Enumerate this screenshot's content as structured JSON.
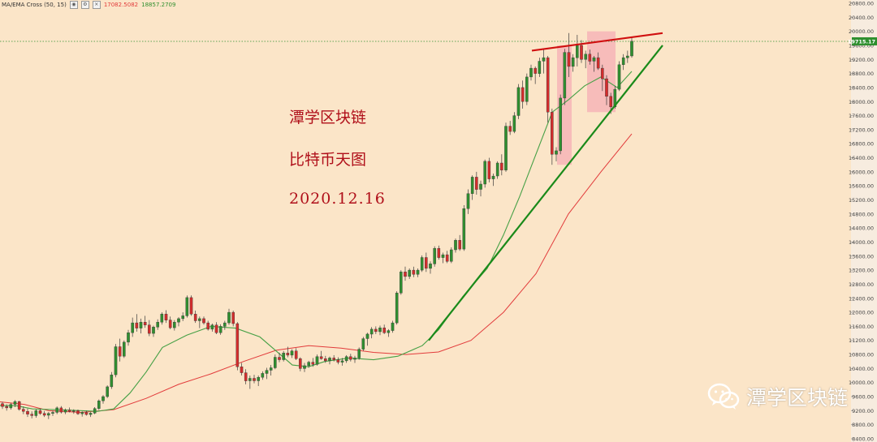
{
  "legend": {
    "indicator": "MA/EMA Cross (50, 15)",
    "ma_value": "17082.5082",
    "ema_value": "18857.2709",
    "ma_color": "#e23b3b",
    "ema_color": "#2f8f2f"
  },
  "annotations": {
    "line1": "潭学区块链",
    "line2": "比特币天图",
    "line3": "2020.12.16"
  },
  "watermark": {
    "text": "潭学区块链",
    "icon": "wechat-icon"
  },
  "chart_data": {
    "type": "candlestick",
    "title": "",
    "price_axis": {
      "range": [
        8400,
        20800
      ],
      "tick_labels": [
        "20800.00",
        "20400.00",
        "20000.00",
        "19600.00",
        "19200.00",
        "18800.00",
        "18400.00",
        "18000.00",
        "17600.00",
        "17200.00",
        "16800.00",
        "16400.00",
        "16000.00",
        "15600.00",
        "15200.00",
        "14800.00",
        "14400.00",
        "14000.00",
        "13600.00",
        "13200.00",
        "12800.00",
        "12400.00",
        "12000.00",
        "11600.00",
        "11200.00",
        "10800.00",
        "10400.00",
        "10000.00",
        "9600.00",
        "9200.00",
        "8800.00",
        "8400.00"
      ],
      "current_price_label": "19715.17",
      "current_price": 19715.17
    },
    "colors": {
      "up": "#2f8f2f",
      "down": "#d42c2c",
      "ma": "#e23b3b",
      "ema": "#46a046",
      "trend_support": "#1a8a1a",
      "trend_resist": "#d01010",
      "highlight": "#f5a0b0"
    },
    "candles": [
      [
        9400,
        9450,
        9250,
        9320
      ],
      [
        9320,
        9380,
        9200,
        9280
      ],
      [
        9280,
        9420,
        9230,
        9380
      ],
      [
        9380,
        9500,
        9300,
        9460
      ],
      [
        9460,
        9480,
        9200,
        9240
      ],
      [
        9240,
        9320,
        9100,
        9180
      ],
      [
        9180,
        9260,
        9020,
        9100
      ],
      [
        9100,
        9180,
        8980,
        9060
      ],
      [
        9060,
        9240,
        9000,
        9200
      ],
      [
        9200,
        9260,
        9080,
        9120
      ],
      [
        9120,
        9190,
        9020,
        9070
      ],
      [
        9070,
        9160,
        8960,
        9120
      ],
      [
        9120,
        9200,
        9050,
        9150
      ],
      [
        9150,
        9320,
        9100,
        9280
      ],
      [
        9280,
        9330,
        9120,
        9160
      ],
      [
        9160,
        9260,
        9100,
        9220
      ],
      [
        9220,
        9290,
        9150,
        9180
      ],
      [
        9180,
        9240,
        9110,
        9200
      ],
      [
        9200,
        9230,
        9080,
        9110
      ],
      [
        9110,
        9180,
        9030,
        9150
      ],
      [
        9150,
        9200,
        9060,
        9090
      ],
      [
        9090,
        9160,
        9020,
        9130
      ],
      [
        9130,
        9300,
        9100,
        9260
      ],
      [
        9260,
        9520,
        9220,
        9480
      ],
      [
        9480,
        9640,
        9400,
        9600
      ],
      [
        9600,
        9920,
        9560,
        9880
      ],
      [
        9880,
        10300,
        9820,
        10220
      ],
      [
        10220,
        11100,
        10150,
        11020
      ],
      [
        11020,
        11250,
        10600,
        10750
      ],
      [
        10750,
        11200,
        10700,
        11150
      ],
      [
        11150,
        11500,
        11050,
        11420
      ],
      [
        11420,
        11850,
        11300,
        11700
      ],
      [
        11700,
        11950,
        11450,
        11550
      ],
      [
        11550,
        11820,
        11400,
        11720
      ],
      [
        11720,
        11900,
        11560,
        11640
      ],
      [
        11640,
        11780,
        11320,
        11400
      ],
      [
        11400,
        11620,
        11300,
        11580
      ],
      [
        11580,
        11800,
        11500,
        11720
      ],
      [
        11720,
        12000,
        11650,
        11950
      ],
      [
        11950,
        12060,
        11700,
        11780
      ],
      [
        11780,
        11880,
        11520,
        11560
      ],
      [
        11560,
        11780,
        11480,
        11720
      ],
      [
        11720,
        11860,
        11600,
        11820
      ],
      [
        11820,
        12000,
        11750,
        11900
      ],
      [
        11900,
        12480,
        11850,
        12420
      ],
      [
        12420,
        12480,
        11900,
        11950
      ],
      [
        11950,
        12050,
        11700,
        11760
      ],
      [
        11760,
        11880,
        11550,
        11820
      ],
      [
        11820,
        11880,
        11650,
        11700
      ],
      [
        11700,
        11760,
        11480,
        11520
      ],
      [
        11520,
        11680,
        11450,
        11640
      ],
      [
        11640,
        11720,
        11380,
        11420
      ],
      [
        11420,
        11660,
        11360,
        11600
      ],
      [
        11600,
        11760,
        11500,
        11700
      ],
      [
        11700,
        12100,
        11640,
        12000
      ],
      [
        12000,
        12050,
        11600,
        11680
      ],
      [
        11680,
        11720,
        10350,
        10450
      ],
      [
        10450,
        10560,
        10200,
        10280
      ],
      [
        10280,
        10380,
        9950,
        10050
      ],
      [
        10050,
        10200,
        9820,
        10120
      ],
      [
        10120,
        10220,
        9980,
        10050
      ],
      [
        10050,
        10200,
        9900,
        10150
      ],
      [
        10150,
        10320,
        10080,
        10260
      ],
      [
        10260,
        10420,
        10100,
        10350
      ],
      [
        10350,
        10500,
        10200,
        10420
      ],
      [
        10420,
        10800,
        10380,
        10720
      ],
      [
        10720,
        10850,
        10580,
        10650
      ],
      [
        10650,
        10900,
        10600,
        10840
      ],
      [
        10840,
        11020,
        10720,
        10780
      ],
      [
        10780,
        10950,
        10700,
        10900
      ],
      [
        10900,
        10980,
        10640,
        10680
      ],
      [
        10680,
        10720,
        10320,
        10400
      ],
      [
        10400,
        10560,
        10300,
        10480
      ],
      [
        10480,
        10620,
        10420,
        10580
      ],
      [
        10580,
        10700,
        10450,
        10520
      ],
      [
        10520,
        10800,
        10480,
        10740
      ],
      [
        10740,
        10900,
        10650,
        10680
      ],
      [
        10680,
        10760,
        10560,
        10620
      ],
      [
        10620,
        10740,
        10520,
        10700
      ],
      [
        10700,
        10780,
        10600,
        10650
      ],
      [
        10650,
        10720,
        10520,
        10580
      ],
      [
        10580,
        10700,
        10480,
        10620
      ],
      [
        10620,
        10780,
        10560,
        10740
      ],
      [
        10740,
        10820,
        10600,
        10660
      ],
      [
        10660,
        10760,
        10560,
        10700
      ],
      [
        10700,
        11000,
        10650,
        10950
      ],
      [
        10950,
        11300,
        10900,
        11250
      ],
      [
        11250,
        11420,
        11050,
        11380
      ],
      [
        11380,
        11580,
        11260,
        11520
      ],
      [
        11520,
        11600,
        11380,
        11450
      ],
      [
        11450,
        11620,
        11350,
        11560
      ],
      [
        11560,
        11650,
        11380,
        11420
      ],
      [
        11420,
        11520,
        11300,
        11480
      ],
      [
        11480,
        11760,
        11420,
        11700
      ],
      [
        11700,
        12600,
        11650,
        12550
      ],
      [
        12550,
        13200,
        12500,
        13150
      ],
      [
        13150,
        13300,
        12900,
        13020
      ],
      [
        13020,
        13250,
        12950,
        13200
      ],
      [
        13200,
        13300,
        13000,
        13080
      ],
      [
        13080,
        13250,
        13000,
        13200
      ],
      [
        13200,
        13620,
        13150,
        13560
      ],
      [
        13560,
        13700,
        13150,
        13250
      ],
      [
        13250,
        13450,
        13100,
        13380
      ],
      [
        13380,
        13880,
        13300,
        13820
      ],
      [
        13820,
        13900,
        13500,
        13560
      ],
      [
        13560,
        13700,
        13400,
        13640
      ],
      [
        13640,
        13750,
        13400,
        13450
      ],
      [
        13450,
        13850,
        13400,
        13780
      ],
      [
        13780,
        14100,
        13700,
        14050
      ],
      [
        14050,
        14200,
        13750,
        13800
      ],
      [
        13800,
        15050,
        13750,
        14950
      ],
      [
        14950,
        15500,
        14800,
        15380
      ],
      [
        15380,
        15900,
        15200,
        15850
      ],
      [
        15850,
        16000,
        15350,
        15500
      ],
      [
        15500,
        15750,
        15300,
        15650
      ],
      [
        15650,
        16350,
        15550,
        16300
      ],
      [
        16300,
        16400,
        15700,
        15800
      ],
      [
        15800,
        15950,
        15600,
        15880
      ],
      [
        15880,
        16300,
        15800,
        16250
      ],
      [
        16250,
        16500,
        15900,
        16050
      ],
      [
        16050,
        17400,
        16000,
        17300
      ],
      [
        17300,
        17450,
        17050,
        17150
      ],
      [
        17150,
        17700,
        17100,
        17600
      ],
      [
        17600,
        18500,
        17500,
        18400
      ],
      [
        18400,
        18600,
        17800,
        18000
      ],
      [
        18000,
        18800,
        17900,
        18700
      ],
      [
        18700,
        19050,
        18600,
        18950
      ],
      [
        18950,
        19000,
        18500,
        18800
      ],
      [
        18800,
        19250,
        18700,
        19150
      ],
      [
        19150,
        19500,
        18800,
        19250
      ],
      [
        19250,
        19300,
        17400,
        17700
      ],
      [
        17700,
        17800,
        16200,
        16500
      ],
      [
        16500,
        16700,
        16300,
        16600
      ],
      [
        16600,
        18200,
        16500,
        18100
      ],
      [
        18100,
        19500,
        17900,
        19400
      ],
      [
        19400,
        19950,
        18700,
        19000
      ],
      [
        19000,
        19350,
        18850,
        19250
      ],
      [
        19250,
        19900,
        19000,
        19600
      ],
      [
        19600,
        19750,
        19100,
        19200
      ],
      [
        19200,
        19450,
        18950,
        19350
      ],
      [
        19350,
        19480,
        19050,
        19150
      ],
      [
        19150,
        19300,
        18850,
        19250
      ],
      [
        19250,
        19400,
        18900,
        18950
      ],
      [
        18950,
        19050,
        18300,
        18650
      ],
      [
        18650,
        18750,
        17900,
        18150
      ],
      [
        18150,
        18250,
        17650,
        17850
      ],
      [
        17850,
        18450,
        17800,
        18350
      ],
      [
        18350,
        19150,
        18300,
        19050
      ],
      [
        19050,
        19350,
        18900,
        19250
      ],
      [
        19250,
        19450,
        19100,
        19300
      ],
      [
        19300,
        19850,
        19250,
        19720
      ]
    ],
    "ma_line": [
      [
        0,
        9450
      ],
      [
        30,
        9380
      ],
      [
        60,
        9200
      ],
      [
        100,
        9150
      ],
      [
        140,
        9230
      ],
      [
        180,
        9550
      ],
      [
        220,
        9950
      ],
      [
        260,
        10250
      ],
      [
        300,
        10600
      ],
      [
        340,
        10920
      ],
      [
        380,
        11050
      ],
      [
        420,
        10980
      ],
      [
        460,
        10860
      ],
      [
        500,
        10800
      ],
      [
        540,
        10870
      ],
      [
        580,
        11200
      ],
      [
        620,
        12000
      ],
      [
        660,
        13100
      ],
      [
        700,
        14800
      ],
      [
        740,
        16000
      ],
      [
        778,
        17080
      ]
    ],
    "ema_line": [
      [
        0,
        9350
      ],
      [
        20,
        9340
      ],
      [
        40,
        9250
      ],
      [
        80,
        9220
      ],
      [
        120,
        9180
      ],
      [
        140,
        9250
      ],
      [
        160,
        9700
      ],
      [
        180,
        10300
      ],
      [
        200,
        11000
      ],
      [
        230,
        11350
      ],
      [
        260,
        11600
      ],
      [
        290,
        11550
      ],
      [
        320,
        11300
      ],
      [
        340,
        10900
      ],
      [
        360,
        10500
      ],
      [
        380,
        10450
      ],
      [
        400,
        10600
      ],
      [
        430,
        10700
      ],
      [
        460,
        10650
      ],
      [
        490,
        10750
      ],
      [
        520,
        11050
      ],
      [
        540,
        11500
      ],
      [
        570,
        12450
      ],
      [
        600,
        13250
      ],
      [
        620,
        14200
      ],
      [
        640,
        15300
      ],
      [
        660,
        16500
      ],
      [
        680,
        17700
      ],
      [
        700,
        18050
      ],
      [
        720,
        18450
      ],
      [
        740,
        18700
      ],
      [
        760,
        18400
      ],
      [
        778,
        18860
      ]
    ],
    "trendlines": [
      {
        "name": "",
        "from": [
          528,
          11200
        ],
        "to": [
          816,
          19600
        ]
      },
      {
        "name": "",
        "from": [
          655,
          19450
        ],
        "to": [
          816,
          19950
        ]
      }
    ],
    "highlight_boxes": [
      {
        "x0": 686,
        "x1": 704,
        "y_top": 19600,
        "y_bottom": 16200
      },
      {
        "x0": 723,
        "x1": 758,
        "y_top": 20000,
        "y_bottom": 17700
      }
    ]
  }
}
